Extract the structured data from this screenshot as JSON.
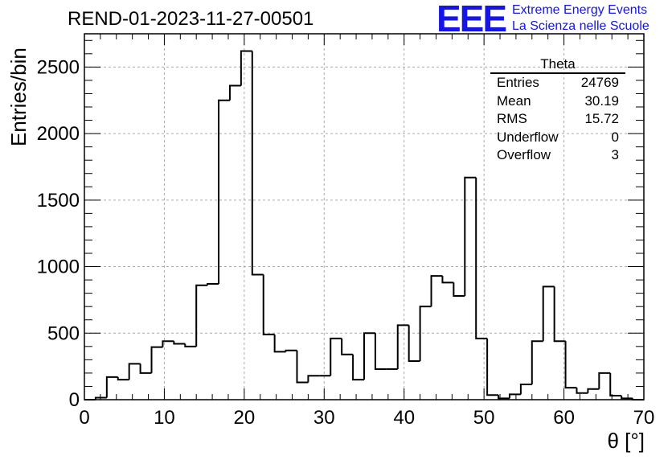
{
  "title": "REND-01-2023-11-27-00501",
  "logo": {
    "mark": "EEE",
    "line1": "Extreme Energy Events",
    "line2": "La Scienza nelle Scuole"
  },
  "stats": {
    "name": "Theta",
    "rows": [
      {
        "label": "Entries",
        "value": "24769"
      },
      {
        "label": "Mean",
        "value": "30.19"
      },
      {
        "label": "RMS",
        "value": "15.72"
      },
      {
        "label": "Underflow",
        "value": "0"
      },
      {
        "label": "Overflow",
        "value": "3"
      }
    ]
  },
  "colors": {
    "histogram": "#000000",
    "grid": "#aaaaaa",
    "logo": "#1515e6"
  },
  "chart_data": {
    "type": "bar",
    "style": "step-histogram",
    "xlabel": "θ [°]",
    "ylabel": "Entries/bin",
    "xlim": [
      0,
      70
    ],
    "ylim": [
      0,
      2750
    ],
    "bin_width": 1.4,
    "bin_start": 0,
    "x_ticks": [
      0,
      10,
      20,
      30,
      40,
      50,
      60,
      70
    ],
    "y_ticks": [
      0,
      500,
      1000,
      1500,
      2000,
      2500
    ],
    "grid": true,
    "values": [
      0,
      15,
      170,
      150,
      270,
      200,
      395,
      440,
      420,
      400,
      860,
      870,
      2250,
      2360,
      2620,
      940,
      490,
      360,
      370,
      130,
      180,
      180,
      460,
      340,
      150,
      500,
      230,
      230,
      560,
      290,
      700,
      930,
      880,
      780,
      1670,
      460,
      35,
      10,
      40,
      115,
      440,
      850,
      440,
      90,
      50,
      80,
      200,
      30,
      10,
      0
    ]
  }
}
